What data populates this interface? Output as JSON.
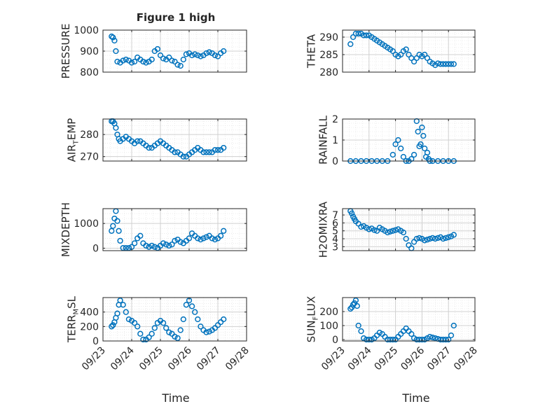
{
  "figure": {
    "title": "Figure 1 high"
  },
  "xaxis": {
    "label": "Time",
    "ticks": [
      "09/23",
      "09/24",
      "09/25",
      "09/26",
      "09/27",
      "09/28"
    ]
  },
  "colors": {
    "marker": "#0072BD",
    "grid": "#dfdfdf",
    "axis": "#262626"
  },
  "chart_data": [
    {
      "type": "scatter",
      "id": "pressure",
      "ylabel": "PRESSURE",
      "ylim": [
        800,
        1000
      ],
      "yticks": [
        800,
        900,
        1000
      ],
      "xlim": [
        0,
        5
      ],
      "x": [
        0.3,
        0.35,
        0.4,
        0.45,
        0.5,
        0.6,
        0.7,
        0.8,
        0.9,
        1.0,
        1.1,
        1.2,
        1.3,
        1.4,
        1.5,
        1.6,
        1.7,
        1.8,
        1.9,
        2.0,
        2.1,
        2.2,
        2.3,
        2.4,
        2.5,
        2.6,
        2.7,
        2.8,
        2.9,
        3.0,
        3.1,
        3.2,
        3.3,
        3.4,
        3.5,
        3.6,
        3.7,
        3.8,
        3.9,
        4.0,
        4.1,
        4.2
      ],
      "y": [
        970,
        965,
        950,
        900,
        850,
        845,
        855,
        860,
        855,
        845,
        850,
        870,
        860,
        850,
        845,
        850,
        860,
        900,
        910,
        880,
        865,
        860,
        870,
        855,
        850,
        835,
        830,
        860,
        885,
        890,
        880,
        885,
        880,
        875,
        880,
        890,
        895,
        890,
        880,
        875,
        890,
        900
      ]
    },
    {
      "type": "scatter",
      "id": "theta",
      "ylabel": "THETA",
      "ylim": [
        280,
        292
      ],
      "yticks": [
        280,
        285,
        290
      ],
      "xlim": [
        0,
        5
      ],
      "x": [
        0.3,
        0.4,
        0.5,
        0.6,
        0.7,
        0.8,
        0.9,
        1.0,
        1.1,
        1.2,
        1.3,
        1.4,
        1.5,
        1.6,
        1.7,
        1.8,
        1.9,
        2.0,
        2.1,
        2.2,
        2.3,
        2.4,
        2.5,
        2.6,
        2.7,
        2.8,
        2.9,
        3.0,
        3.1,
        3.2,
        3.3,
        3.4,
        3.5,
        3.6,
        3.7,
        3.8,
        3.9,
        4.0,
        4.1,
        4.2
      ],
      "y": [
        288,
        290,
        291,
        291,
        291,
        290.5,
        290.5,
        290.5,
        290,
        289.5,
        289,
        288.5,
        288,
        287.5,
        287,
        286.5,
        286,
        285,
        284.5,
        285,
        286,
        286.5,
        285,
        284,
        283,
        284,
        285,
        284.5,
        285,
        284,
        283,
        282.5,
        282,
        282.5,
        282.3,
        282.3,
        282.3,
        282.3,
        282.3,
        282.3
      ]
    },
    {
      "type": "scatter",
      "id": "air_temp",
      "ylabel": "AIR_TEMP",
      "ylim": [
        268,
        287
      ],
      "yticks": [
        270,
        280
      ],
      "xlim": [
        0,
        5
      ],
      "x": [
        0.3,
        0.35,
        0.4,
        0.45,
        0.5,
        0.55,
        0.6,
        0.7,
        0.8,
        0.9,
        1.0,
        1.1,
        1.2,
        1.3,
        1.4,
        1.5,
        1.6,
        1.7,
        1.8,
        1.9,
        2.0,
        2.1,
        2.2,
        2.3,
        2.4,
        2.5,
        2.6,
        2.7,
        2.8,
        2.9,
        3.0,
        3.1,
        3.2,
        3.3,
        3.4,
        3.5,
        3.6,
        3.7,
        3.8,
        3.9,
        4.0,
        4.1,
        4.2
      ],
      "y": [
        286,
        286,
        285,
        283,
        280,
        278,
        277,
        278,
        279,
        278,
        277,
        276,
        277,
        277,
        276,
        275,
        274,
        274,
        275,
        276,
        277,
        276,
        275,
        274,
        273,
        272,
        272,
        271,
        270,
        270,
        271,
        272,
        273,
        274,
        273,
        272,
        272,
        272,
        272,
        273,
        273,
        273,
        274
      ]
    },
    {
      "type": "scatter",
      "id": "rainfall",
      "ylabel": "RAINFALL",
      "ylim": [
        0,
        2
      ],
      "yticks": [
        0,
        1,
        2
      ],
      "xlim": [
        0,
        5
      ],
      "x": [
        0.3,
        0.5,
        0.7,
        0.9,
        1.1,
        1.3,
        1.5,
        1.7,
        1.9,
        2.0,
        2.1,
        2.2,
        2.3,
        2.4,
        2.5,
        2.6,
        2.7,
        2.8,
        2.85,
        2.9,
        2.95,
        3.0,
        3.05,
        3.1,
        3.15,
        3.2,
        3.25,
        3.3,
        3.4,
        3.6,
        3.8,
        4.0,
        4.2
      ],
      "y": [
        0,
        0,
        0,
        0,
        0,
        0,
        0,
        0,
        0.3,
        0.8,
        1.0,
        0.6,
        0.2,
        0,
        0,
        0.1,
        0.3,
        1.9,
        1.4,
        0.7,
        0.8,
        1.6,
        1.2,
        0.6,
        0.2,
        0.4,
        0.1,
        0,
        0,
        0,
        0,
        0,
        0
      ]
    },
    {
      "type": "scatter",
      "id": "mixdepth",
      "ylabel": "MIXDEPTH",
      "ylim": [
        -100,
        1600
      ],
      "yticks": [
        0,
        1000
      ],
      "xlim": [
        0,
        5
      ],
      "x": [
        0.3,
        0.35,
        0.4,
        0.45,
        0.5,
        0.55,
        0.6,
        0.7,
        0.8,
        0.9,
        1.0,
        1.1,
        1.2,
        1.3,
        1.4,
        1.5,
        1.6,
        1.7,
        1.8,
        1.9,
        2.0,
        2.1,
        2.2,
        2.3,
        2.4,
        2.5,
        2.6,
        2.7,
        2.8,
        2.9,
        3.0,
        3.1,
        3.2,
        3.3,
        3.4,
        3.5,
        3.6,
        3.7,
        3.8,
        3.9,
        4.0,
        4.1,
        4.2
      ],
      "y": [
        700,
        900,
        1200,
        1500,
        1100,
        700,
        300,
        10,
        10,
        10,
        50,
        200,
        400,
        500,
        200,
        100,
        50,
        100,
        50,
        10,
        100,
        200,
        150,
        100,
        150,
        300,
        350,
        250,
        200,
        300,
        400,
        600,
        500,
        400,
        350,
        400,
        450,
        500,
        400,
        350,
        400,
        500,
        700
      ]
    },
    {
      "type": "scatter",
      "id": "h2omixra",
      "ylabel": "H2OMIXRA",
      "ylim": [
        2.5,
        7.8
      ],
      "yticks": [
        3,
        4,
        5,
        6,
        7
      ],
      "xlim": [
        0,
        5
      ],
      "x": [
        0.3,
        0.35,
        0.4,
        0.45,
        0.5,
        0.6,
        0.7,
        0.8,
        0.9,
        1.0,
        1.1,
        1.2,
        1.3,
        1.4,
        1.5,
        1.6,
        1.7,
        1.8,
        1.9,
        2.0,
        2.1,
        2.2,
        2.3,
        2.4,
        2.5,
        2.6,
        2.7,
        2.8,
        2.9,
        3.0,
        3.1,
        3.2,
        3.3,
        3.4,
        3.5,
        3.6,
        3.7,
        3.8,
        3.9,
        4.0,
        4.1,
        4.2
      ],
      "y": [
        7.5,
        7.2,
        6.8,
        6.5,
        6.2,
        5.9,
        5.5,
        5.6,
        5.4,
        5.2,
        5.3,
        5.1,
        5.0,
        5.4,
        5.2,
        5.0,
        4.8,
        4.9,
        5.0,
        5.1,
        5.2,
        5.0,
        4.8,
        4.0,
        3.2,
        2.8,
        3.6,
        4.0,
        4.1,
        4.0,
        3.8,
        3.9,
        4.0,
        4.1,
        4.0,
        4.1,
        4.2,
        4.0,
        4.1,
        4.2,
        4.3,
        4.5
      ]
    },
    {
      "type": "scatter",
      "id": "terr_msl",
      "ylabel": "TERR_MSL",
      "ylim": [
        0,
        600
      ],
      "yticks": [
        0,
        200,
        400
      ],
      "xlim": [
        0,
        5
      ],
      "x": [
        0.3,
        0.35,
        0.4,
        0.45,
        0.5,
        0.55,
        0.6,
        0.7,
        0.8,
        0.9,
        1.0,
        1.1,
        1.2,
        1.3,
        1.4,
        1.5,
        1.6,
        1.7,
        1.8,
        1.9,
        2.0,
        2.1,
        2.2,
        2.3,
        2.4,
        2.5,
        2.6,
        2.7,
        2.8,
        2.9,
        3.0,
        3.1,
        3.2,
        3.3,
        3.4,
        3.5,
        3.6,
        3.7,
        3.8,
        3.9,
        4.0,
        4.1,
        4.2
      ],
      "y": [
        200,
        220,
        260,
        320,
        380,
        500,
        560,
        500,
        400,
        300,
        280,
        250,
        200,
        100,
        20,
        20,
        50,
        100,
        180,
        250,
        280,
        250,
        180,
        120,
        100,
        60,
        40,
        150,
        300,
        500,
        560,
        480,
        400,
        300,
        200,
        150,
        120,
        130,
        150,
        180,
        220,
        260,
        300
      ]
    },
    {
      "type": "scatter",
      "id": "sun_flux",
      "ylabel": "SUN_FLUX",
      "ylim": [
        -10,
        300
      ],
      "yticks": [
        0,
        100,
        200
      ],
      "xlim": [
        0,
        5
      ],
      "x": [
        0.3,
        0.35,
        0.4,
        0.45,
        0.5,
        0.55,
        0.6,
        0.7,
        0.8,
        0.9,
        1.0,
        1.1,
        1.2,
        1.3,
        1.4,
        1.5,
        1.6,
        1.7,
        1.8,
        1.9,
        2.0,
        2.1,
        2.2,
        2.3,
        2.4,
        2.5,
        2.6,
        2.7,
        2.8,
        2.9,
        3.0,
        3.1,
        3.2,
        3.3,
        3.4,
        3.5,
        3.6,
        3.7,
        3.8,
        3.9,
        4.0,
        4.1,
        4.2
      ],
      "y": [
        220,
        230,
        250,
        260,
        280,
        240,
        100,
        60,
        10,
        0,
        0,
        0,
        10,
        30,
        50,
        40,
        20,
        0,
        0,
        0,
        0,
        20,
        40,
        60,
        80,
        60,
        40,
        10,
        0,
        0,
        0,
        0,
        10,
        20,
        15,
        10,
        5,
        0,
        0,
        0,
        0,
        30,
        100
      ]
    }
  ]
}
